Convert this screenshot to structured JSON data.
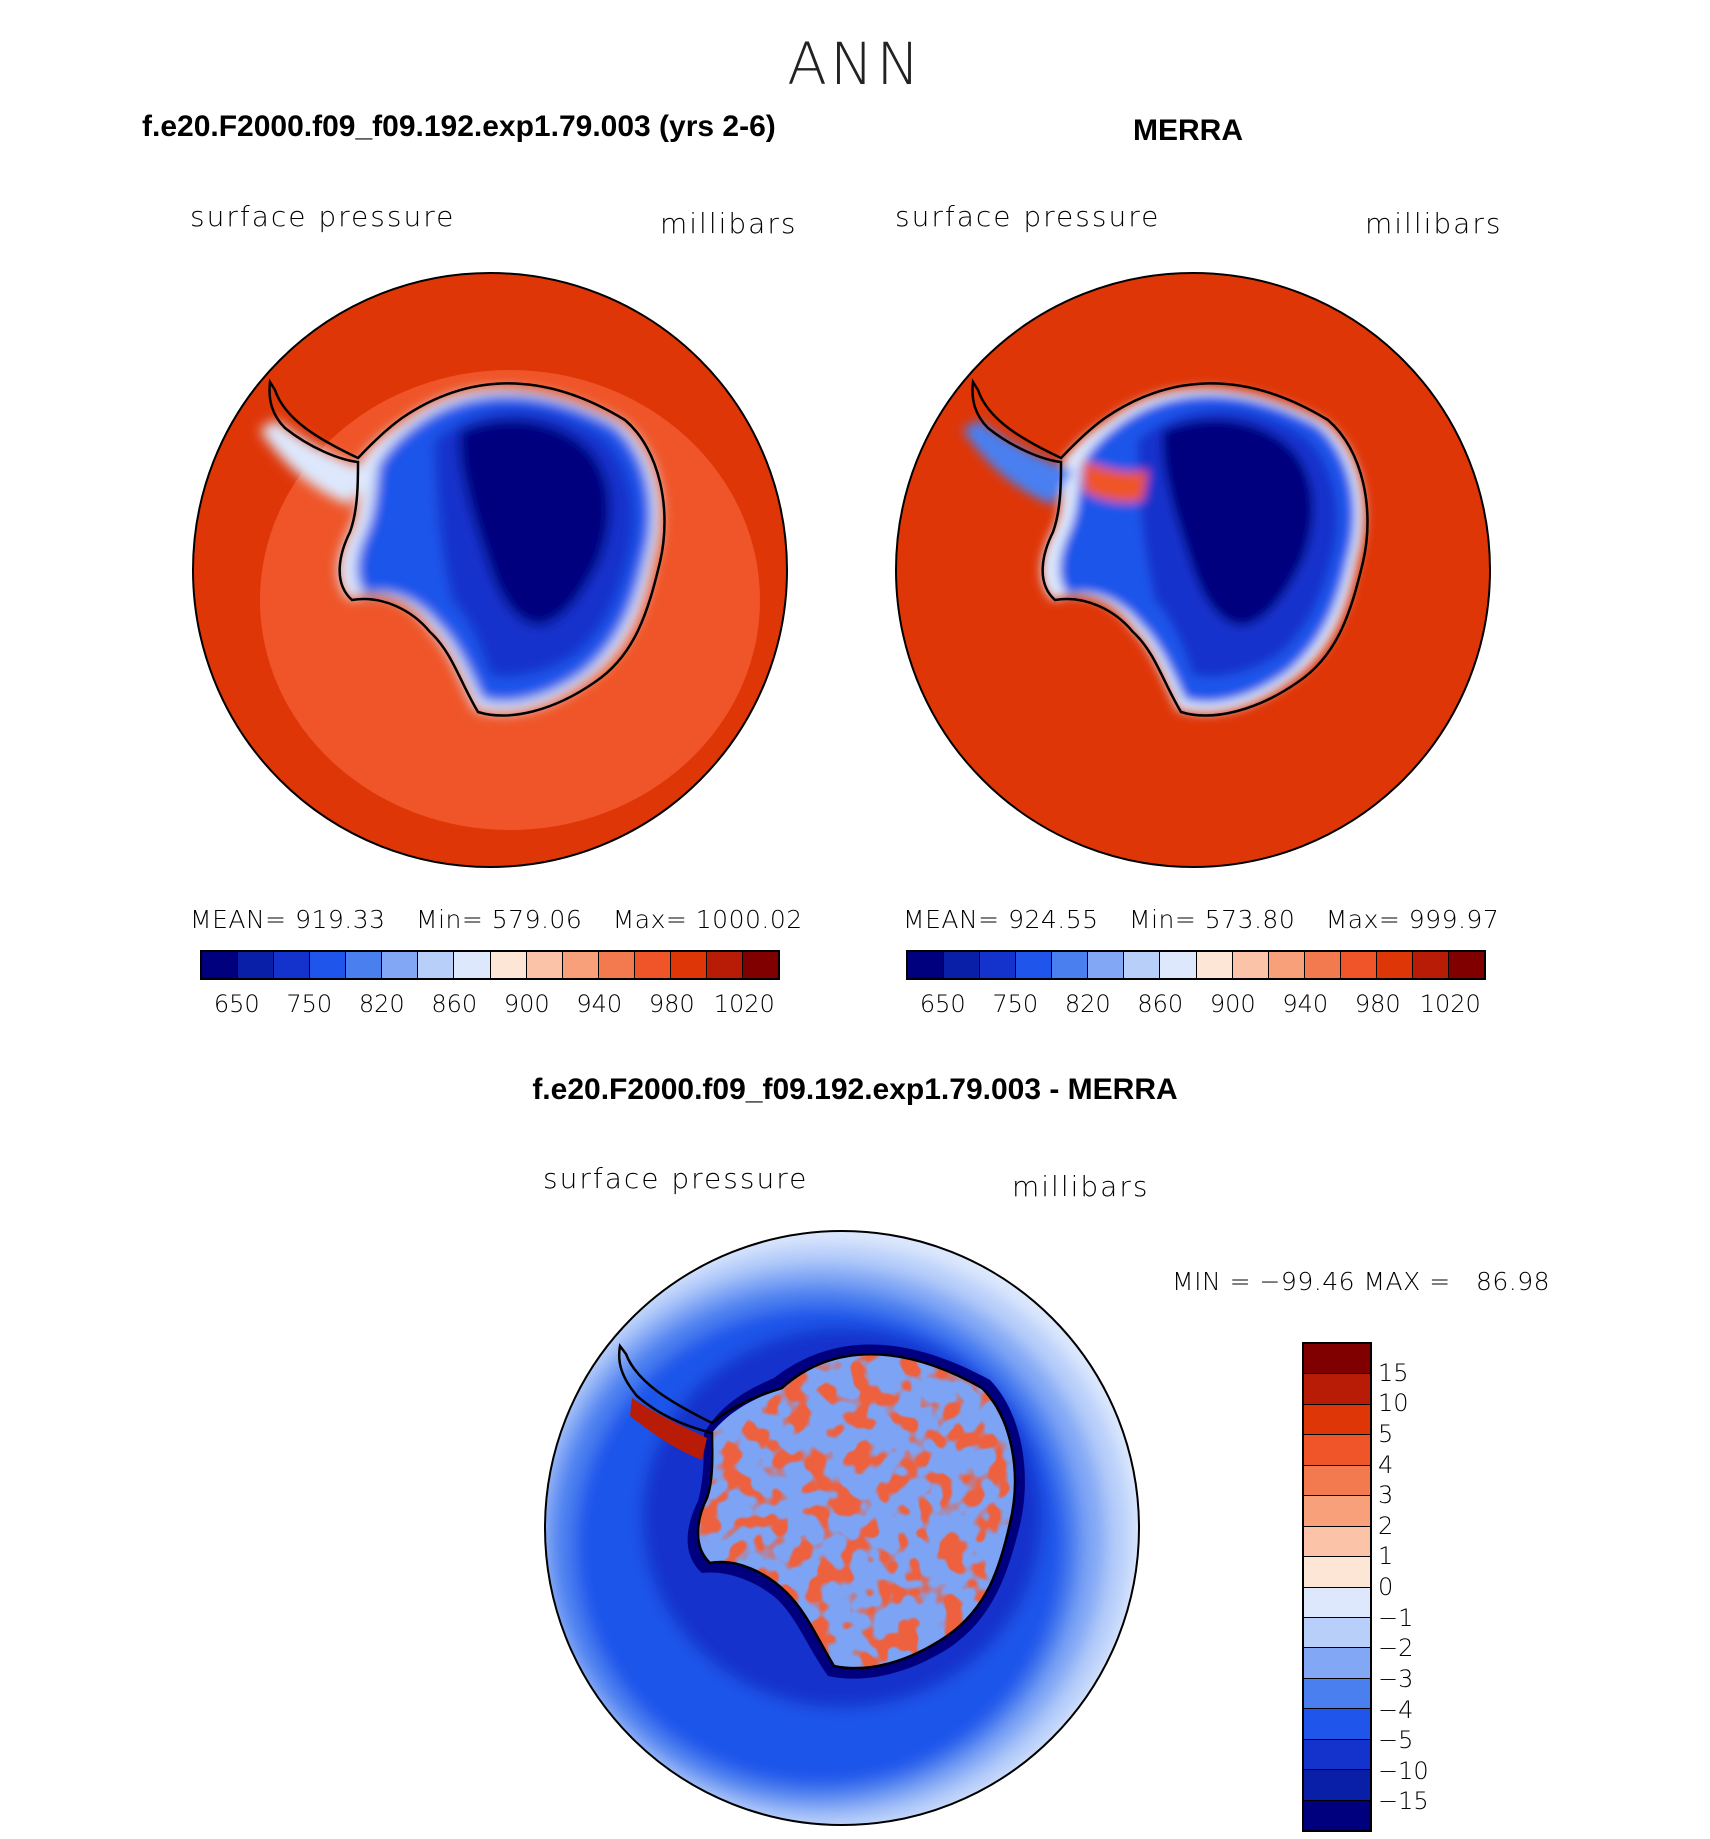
{
  "figure": {
    "title": "ANN"
  },
  "panels": [
    {
      "case_title": "f.e20.F2000.f09_f09.192.exp1.79.003 (yrs 2-6)",
      "variable": "surface pressure",
      "units": "millibars",
      "stats": {
        "mean": "MEAN= 919.33",
        "min": "Min= 579.06",
        "max": "Max= 1000.02"
      }
    },
    {
      "case_title": "MERRA",
      "variable": "surface pressure",
      "units": "millibars",
      "stats": {
        "mean": "MEAN= 924.55",
        "min": "Min= 573.80",
        "max": "Max= 999.97"
      }
    }
  ],
  "colorbar_abs": {
    "colors": [
      "#00007f",
      "#0a1fa8",
      "#1432cc",
      "#1f55ea",
      "#4a7ff0",
      "#82a8f5",
      "#b8cffa",
      "#dde8fd",
      "#fde6d6",
      "#fbc4a8",
      "#f7a07a",
      "#f37a4f",
      "#ef5528",
      "#df3608",
      "#b81c06",
      "#800000"
    ],
    "labels": [
      "650",
      "750",
      "820",
      "860",
      "900",
      "940",
      "980",
      "1020"
    ]
  },
  "diff_panel": {
    "case_title": "f.e20.F2000.f09_f09.192.exp1.79.003 - MERRA",
    "variable": "surface pressure",
    "units": "millibars",
    "minmax": "MIN = −99.46 MAX =   86.98"
  },
  "colorbar_diff": {
    "colors": [
      "#800000",
      "#b81c06",
      "#df3608",
      "#ef5528",
      "#f37a4f",
      "#f7a07a",
      "#fbc4a8",
      "#fde6d6",
      "#dde8fd",
      "#b8cffa",
      "#82a8f5",
      "#4a7ff0",
      "#1f55ea",
      "#1432cc",
      "#0a1fa8",
      "#00007f"
    ],
    "labels": [
      "15",
      "10",
      "5",
      "4",
      "3",
      "2",
      "1",
      "0",
      "−1",
      "−2",
      "−3",
      "−4",
      "−5",
      "−10",
      "−15"
    ]
  }
}
